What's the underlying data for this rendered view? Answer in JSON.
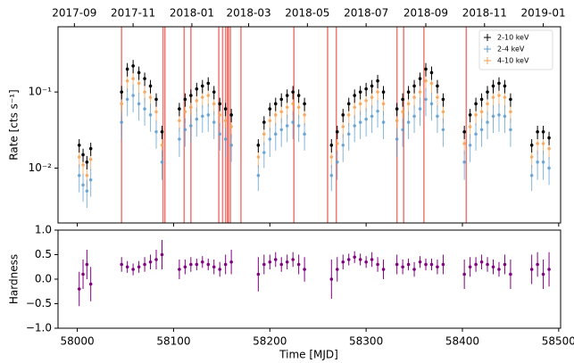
{
  "chart_data": [
    {
      "type": "errorbar",
      "ylabel": "Rate [cts s⁻¹]",
      "log_y": true,
      "legend": "upper right",
      "xlim": [
        57980,
        58502
      ],
      "ylim": [
        0.0019,
        0.72
      ],
      "yticks": [
        {
          "value": 0.01,
          "label": "10⁻²"
        },
        {
          "value": 0.1,
          "label": "10⁻¹"
        }
      ],
      "x2ticks": [
        {
          "value": 57997,
          "label": "2017-09"
        },
        {
          "value": 58058,
          "label": "2017-11"
        },
        {
          "value": 58119,
          "label": "2018-01"
        },
        {
          "value": 58178,
          "label": "2018-03"
        },
        {
          "value": 58239,
          "label": "2018-05"
        },
        {
          "value": 58300,
          "label": "2018-07"
        },
        {
          "value": 58362,
          "label": "2018-09"
        },
        {
          "value": 58423,
          "label": "2018-11"
        },
        {
          "value": 58484,
          "label": "2019-01"
        }
      ],
      "vlines": [
        58046,
        58089,
        58091,
        58111,
        58118,
        58147,
        58151,
        58154,
        58156,
        58157,
        58159,
        58170,
        58225,
        58260,
        58269,
        58332,
        58339,
        58360,
        58404
      ],
      "vline_color": "#e8584f",
      "x": [
        58002,
        58006,
        58010,
        58014,
        58046,
        58052,
        58058,
        58064,
        58070,
        58076,
        58082,
        58088,
        58106,
        58112,
        58118,
        58124,
        58130,
        58136,
        58142,
        58148,
        58154,
        58160,
        58188,
        58194,
        58200,
        58206,
        58212,
        58218,
        58224,
        58230,
        58236,
        58264,
        58270,
        58276,
        58282,
        58288,
        58294,
        58300,
        58306,
        58312,
        58318,
        58332,
        58338,
        58344,
        58350,
        58356,
        58362,
        58368,
        58374,
        58380,
        58402,
        58408,
        58414,
        58420,
        58426,
        58432,
        58438,
        58444,
        58450,
        58472,
        58478,
        58484,
        58490
      ],
      "series": [
        {
          "name": "2-10 keV",
          "color": "#000000",
          "values": [
            0.02,
            0.015,
            0.012,
            0.018,
            0.1,
            0.2,
            0.22,
            0.18,
            0.15,
            0.12,
            0.08,
            0.03,
            0.06,
            0.08,
            0.09,
            0.11,
            0.12,
            0.13,
            0.1,
            0.07,
            0.06,
            0.05,
            0.02,
            0.04,
            0.06,
            0.07,
            0.08,
            0.09,
            0.1,
            0.09,
            0.07,
            0.02,
            0.03,
            0.05,
            0.07,
            0.09,
            0.1,
            0.11,
            0.12,
            0.14,
            0.1,
            0.06,
            0.08,
            0.1,
            0.12,
            0.15,
            0.2,
            0.18,
            0.12,
            0.08,
            0.03,
            0.05,
            0.07,
            0.08,
            0.1,
            0.12,
            0.13,
            0.12,
            0.08,
            0.02,
            0.03,
            0.03,
            0.025
          ],
          "errors": [
            0.004,
            0.003,
            0.0024,
            0.0036,
            0.02,
            0.04,
            0.044,
            0.036,
            0.03,
            0.024,
            0.016,
            0.006,
            0.012,
            0.016,
            0.018,
            0.022,
            0.024,
            0.026,
            0.02,
            0.014,
            0.012,
            0.01,
            0.004,
            0.008,
            0.012,
            0.014,
            0.016,
            0.018,
            0.02,
            0.018,
            0.014,
            0.004,
            0.006,
            0.01,
            0.014,
            0.018,
            0.02,
            0.022,
            0.024,
            0.028,
            0.02,
            0.012,
            0.016,
            0.02,
            0.024,
            0.03,
            0.04,
            0.036,
            0.024,
            0.016,
            0.006,
            0.01,
            0.014,
            0.016,
            0.02,
            0.024,
            0.026,
            0.024,
            0.016,
            0.004,
            0.006,
            0.006,
            0.005
          ]
        },
        {
          "name": "2-4 keV",
          "color": "#5b9bd0",
          "values": [
            0.008,
            0.006,
            0.005,
            0.007,
            0.04,
            0.08,
            0.09,
            0.07,
            0.06,
            0.05,
            0.03,
            0.012,
            0.024,
            0.032,
            0.036,
            0.044,
            0.048,
            0.05,
            0.04,
            0.028,
            0.024,
            0.02,
            0.008,
            0.016,
            0.024,
            0.028,
            0.032,
            0.036,
            0.04,
            0.036,
            0.028,
            0.008,
            0.012,
            0.02,
            0.028,
            0.036,
            0.04,
            0.044,
            0.048,
            0.056,
            0.04,
            0.024,
            0.032,
            0.04,
            0.048,
            0.06,
            0.08,
            0.07,
            0.048,
            0.032,
            0.012,
            0.02,
            0.028,
            0.032,
            0.04,
            0.048,
            0.05,
            0.048,
            0.032,
            0.008,
            0.012,
            0.012,
            0.01
          ],
          "errors": [
            0.0032,
            0.0024,
            0.002,
            0.0028,
            0.016,
            0.032,
            0.036,
            0.028,
            0.024,
            0.02,
            0.012,
            0.005,
            0.01,
            0.013,
            0.014,
            0.018,
            0.019,
            0.02,
            0.016,
            0.011,
            0.01,
            0.008,
            0.003,
            0.006,
            0.01,
            0.011,
            0.013,
            0.014,
            0.016,
            0.014,
            0.011,
            0.003,
            0.005,
            0.008,
            0.011,
            0.014,
            0.016,
            0.018,
            0.019,
            0.022,
            0.016,
            0.01,
            0.013,
            0.016,
            0.019,
            0.024,
            0.032,
            0.028,
            0.019,
            0.013,
            0.005,
            0.008,
            0.011,
            0.013,
            0.016,
            0.019,
            0.02,
            0.019,
            0.013,
            0.003,
            0.005,
            0.005,
            0.004
          ]
        },
        {
          "name": "4-10 keV",
          "color": "#f5a050",
          "values": [
            0.014,
            0.011,
            0.008,
            0.013,
            0.07,
            0.14,
            0.15,
            0.13,
            0.1,
            0.085,
            0.055,
            0.02,
            0.042,
            0.055,
            0.063,
            0.077,
            0.085,
            0.09,
            0.07,
            0.05,
            0.042,
            0.035,
            0.014,
            0.028,
            0.042,
            0.05,
            0.055,
            0.063,
            0.07,
            0.063,
            0.05,
            0.014,
            0.021,
            0.035,
            0.05,
            0.063,
            0.07,
            0.077,
            0.085,
            0.1,
            0.07,
            0.042,
            0.055,
            0.07,
            0.085,
            0.1,
            0.14,
            0.13,
            0.085,
            0.055,
            0.021,
            0.035,
            0.05,
            0.055,
            0.07,
            0.085,
            0.09,
            0.085,
            0.055,
            0.014,
            0.021,
            0.021,
            0.018
          ],
          "errors": [
            0.004,
            0.003,
            0.0024,
            0.0036,
            0.02,
            0.04,
            0.044,
            0.036,
            0.03,
            0.024,
            0.016,
            0.006,
            0.012,
            0.016,
            0.018,
            0.022,
            0.024,
            0.026,
            0.02,
            0.014,
            0.012,
            0.01,
            0.004,
            0.008,
            0.012,
            0.014,
            0.016,
            0.018,
            0.02,
            0.018,
            0.014,
            0.004,
            0.006,
            0.01,
            0.014,
            0.018,
            0.02,
            0.022,
            0.024,
            0.028,
            0.02,
            0.012,
            0.016,
            0.02,
            0.024,
            0.03,
            0.04,
            0.036,
            0.024,
            0.016,
            0.006,
            0.01,
            0.014,
            0.016,
            0.02,
            0.024,
            0.026,
            0.024,
            0.016,
            0.004,
            0.006,
            0.006,
            0.005
          ]
        }
      ]
    },
    {
      "type": "errorbar",
      "xlabel": "Time [MJD]",
      "ylabel": "Hardness",
      "xlim": [
        57980,
        58502
      ],
      "ylim": [
        -1,
        1
      ],
      "xticks": [
        58000,
        58100,
        58200,
        58300,
        58400,
        58500
      ],
      "yticks": [
        {
          "value": -1,
          "label": "−1.0"
        },
        {
          "value": -0.5,
          "label": "−0.5"
        },
        {
          "value": 0,
          "label": "0.0"
        },
        {
          "value": 0.5,
          "label": "0.5"
        },
        {
          "value": 1,
          "label": "1.0"
        }
      ],
      "x": [
        58002,
        58006,
        58010,
        58014,
        58046,
        58052,
        58058,
        58064,
        58070,
        58076,
        58082,
        58088,
        58106,
        58112,
        58118,
        58124,
        58130,
        58136,
        58142,
        58148,
        58154,
        58160,
        58188,
        58194,
        58200,
        58206,
        58212,
        58218,
        58224,
        58230,
        58236,
        58264,
        58270,
        58276,
        58282,
        58288,
        58294,
        58300,
        58306,
        58312,
        58318,
        58332,
        58338,
        58344,
        58350,
        58356,
        58362,
        58368,
        58374,
        58380,
        58402,
        58408,
        58414,
        58420,
        58426,
        58432,
        58438,
        58444,
        58450,
        58472,
        58478,
        58484,
        58490
      ],
      "series": [
        {
          "color": "#800080",
          "values": [
            -0.2,
            0.1,
            0.3,
            -0.1,
            0.3,
            0.25,
            0.2,
            0.25,
            0.3,
            0.35,
            0.4,
            0.5,
            0.2,
            0.25,
            0.3,
            0.3,
            0.35,
            0.3,
            0.25,
            0.2,
            0.3,
            0.35,
            0.1,
            0.3,
            0.35,
            0.4,
            0.3,
            0.35,
            0.4,
            0.3,
            0.2,
            0.0,
            0.2,
            0.35,
            0.4,
            0.45,
            0.4,
            0.35,
            0.4,
            0.3,
            0.2,
            0.3,
            0.25,
            0.3,
            0.2,
            0.35,
            0.3,
            0.3,
            0.25,
            0.3,
            0.1,
            0.25,
            0.3,
            0.35,
            0.3,
            0.25,
            0.2,
            0.3,
            0.1,
            0.2,
            0.3,
            0.1,
            0.2
          ],
          "errors": [
            0.35,
            0.3,
            0.3,
            0.35,
            0.15,
            0.12,
            0.12,
            0.12,
            0.15,
            0.15,
            0.2,
            0.3,
            0.2,
            0.15,
            0.15,
            0.12,
            0.12,
            0.12,
            0.15,
            0.15,
            0.2,
            0.25,
            0.35,
            0.2,
            0.15,
            0.15,
            0.15,
            0.15,
            0.15,
            0.2,
            0.25,
            0.4,
            0.25,
            0.15,
            0.12,
            0.12,
            0.12,
            0.12,
            0.15,
            0.15,
            0.2,
            0.2,
            0.15,
            0.12,
            0.15,
            0.12,
            0.12,
            0.12,
            0.15,
            0.2,
            0.3,
            0.2,
            0.15,
            0.15,
            0.15,
            0.15,
            0.15,
            0.2,
            0.3,
            0.3,
            0.25,
            0.3,
            0.35
          ]
        }
      ]
    }
  ]
}
